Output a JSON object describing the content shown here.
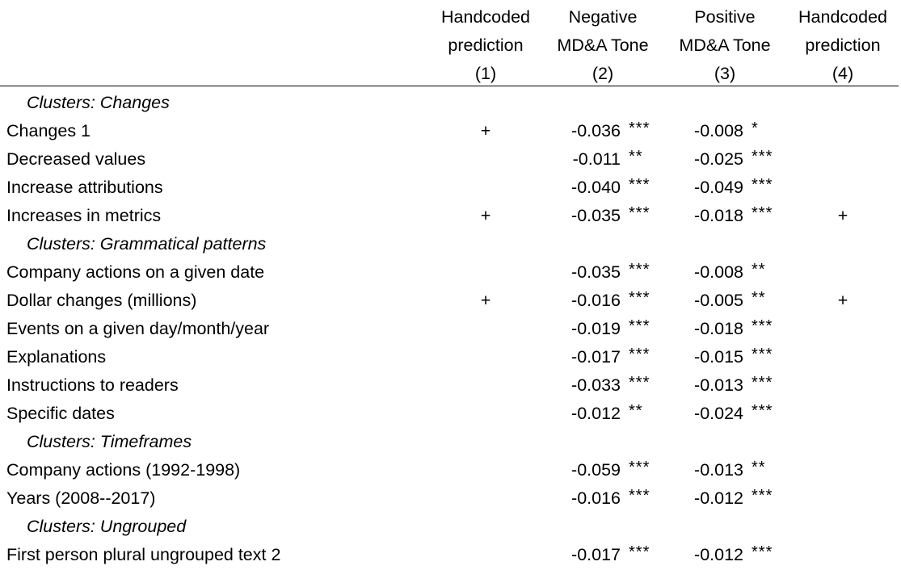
{
  "headers": [
    {
      "line1": "Handcoded",
      "line2": "prediction",
      "num": "(1)"
    },
    {
      "line1": "Negative",
      "line2": "MD&A Tone",
      "num": "(2)"
    },
    {
      "line1": "Positive",
      "line2": "MD&A Tone",
      "num": "(3)"
    },
    {
      "line1": "Handcoded",
      "line2": "prediction",
      "num": "(4)"
    }
  ],
  "rows": [
    {
      "type": "group",
      "label": "Clusters: Changes"
    },
    {
      "type": "data",
      "label": "Changes 1",
      "pred1": "+",
      "neg": "-0.036",
      "neg_sig": "***",
      "pos": "-0.008",
      "pos_sig": "*",
      "pred4": ""
    },
    {
      "type": "data",
      "label": "Decreased values",
      "pred1": "",
      "neg": "-0.011",
      "neg_sig": "**",
      "pos": "-0.025",
      "pos_sig": "***",
      "pred4": ""
    },
    {
      "type": "data",
      "label": "Increase attributions",
      "pred1": "",
      "neg": "-0.040",
      "neg_sig": "***",
      "pos": "-0.049",
      "pos_sig": "***",
      "pred4": ""
    },
    {
      "type": "data",
      "label": "Increases in metrics",
      "pred1": "+",
      "neg": "-0.035",
      "neg_sig": "***",
      "pos": "-0.018",
      "pos_sig": "***",
      "pred4": "+"
    },
    {
      "type": "group",
      "label": "Clusters: Grammatical patterns"
    },
    {
      "type": "data",
      "label": "Company actions on a given date",
      "pred1": "",
      "neg": "-0.035",
      "neg_sig": "***",
      "pos": "-0.008",
      "pos_sig": "**",
      "pred4": ""
    },
    {
      "type": "data",
      "label": "Dollar changes (millions)",
      "pred1": "+",
      "neg": "-0.016",
      "neg_sig": "***",
      "pos": "-0.005",
      "pos_sig": "**",
      "pred4": "+"
    },
    {
      "type": "data",
      "label": "Events on a given day/month/year",
      "pred1": "",
      "neg": "-0.019",
      "neg_sig": "***",
      "pos": "-0.018",
      "pos_sig": "***",
      "pred4": ""
    },
    {
      "type": "data",
      "label": "Explanations",
      "pred1": "",
      "neg": "-0.017",
      "neg_sig": "***",
      "pos": "-0.015",
      "pos_sig": "***",
      "pred4": ""
    },
    {
      "type": "data",
      "label": "Instructions to readers",
      "pred1": "",
      "neg": "-0.033",
      "neg_sig": "***",
      "pos": "-0.013",
      "pos_sig": "***",
      "pred4": ""
    },
    {
      "type": "data",
      "label": "Specific dates",
      "pred1": "",
      "neg": "-0.012",
      "neg_sig": "**",
      "pos": "-0.024",
      "pos_sig": "***",
      "pred4": ""
    },
    {
      "type": "group",
      "label": "Clusters: Timeframes"
    },
    {
      "type": "data",
      "label": "Company actions (1992-1998)",
      "pred1": "",
      "neg": "-0.059",
      "neg_sig": "***",
      "pos": "-0.013",
      "pos_sig": "**",
      "pred4": ""
    },
    {
      "type": "data",
      "label": "Years (2008--2017)",
      "pred1": "",
      "neg": "-0.016",
      "neg_sig": "***",
      "pos": "-0.012",
      "pos_sig": "***",
      "pred4": ""
    },
    {
      "type": "group",
      "label": "Clusters: Ungrouped"
    },
    {
      "type": "data",
      "label": "First person plural ungrouped text 2",
      "pred1": "",
      "neg": "-0.017",
      "neg_sig": "***",
      "pos": "-0.012",
      "pos_sig": "***",
      "pred4": ""
    }
  ]
}
